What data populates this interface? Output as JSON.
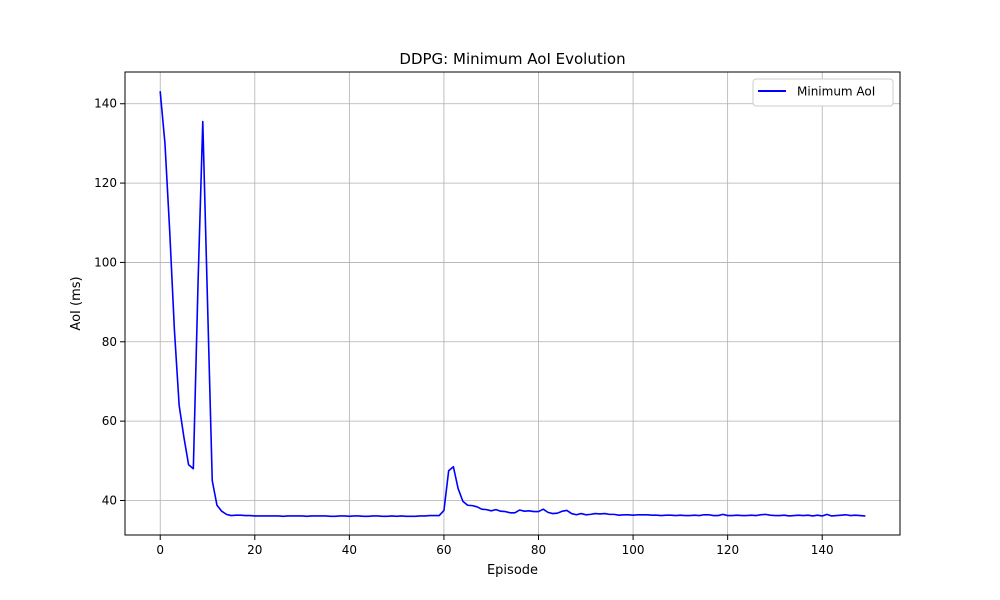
{
  "chart_data": {
    "type": "line",
    "title": "DDPG: Minimum AoI Evolution",
    "xlabel": "Episode",
    "ylabel": "AoI (ms)",
    "xlim": [
      -7.45,
      156.45
    ],
    "ylim": [
      31.3,
      148.0
    ],
    "xticks": [
      0,
      20,
      40,
      60,
      80,
      100,
      120,
      140
    ],
    "yticks": [
      40,
      60,
      80,
      100,
      120,
      140
    ],
    "grid": true,
    "legend_position": "top-right",
    "series": [
      {
        "name": "Minimum AoI",
        "color": "#0000ff",
        "x": [
          0,
          1,
          2,
          3,
          4,
          5,
          6,
          7,
          8,
          9,
          10,
          11,
          12,
          13,
          14,
          15,
          16,
          17,
          18,
          19,
          20,
          21,
          22,
          23,
          24,
          25,
          26,
          27,
          28,
          29,
          30,
          31,
          32,
          33,
          34,
          35,
          36,
          37,
          38,
          39,
          40,
          41,
          42,
          43,
          44,
          45,
          46,
          47,
          48,
          49,
          50,
          51,
          52,
          53,
          54,
          55,
          56,
          57,
          58,
          59,
          60,
          61,
          62,
          63,
          64,
          65,
          66,
          67,
          68,
          69,
          70,
          71,
          72,
          73,
          74,
          75,
          76,
          77,
          78,
          79,
          80,
          81,
          82,
          83,
          84,
          85,
          86,
          87,
          88,
          89,
          90,
          91,
          92,
          93,
          94,
          95,
          96,
          97,
          98,
          99,
          100,
          101,
          102,
          103,
          104,
          105,
          106,
          107,
          108,
          109,
          110,
          111,
          112,
          113,
          114,
          115,
          116,
          117,
          118,
          119,
          120,
          121,
          122,
          123,
          124,
          125,
          126,
          127,
          128,
          129,
          130,
          131,
          132,
          133,
          134,
          135,
          136,
          137,
          138,
          139,
          140,
          141,
          142,
          143,
          144,
          145,
          146,
          147,
          148,
          149
        ],
        "values": [
          143.0,
          130.0,
          108.0,
          83.0,
          64.0,
          56.0,
          49.0,
          48.0,
          95.0,
          135.5,
          90.0,
          45.0,
          38.8,
          37.3,
          36.5,
          36.2,
          36.3,
          36.3,
          36.2,
          36.2,
          36.1,
          36.1,
          36.1,
          36.1,
          36.1,
          36.1,
          36.0,
          36.1,
          36.1,
          36.1,
          36.1,
          36.0,
          36.1,
          36.1,
          36.1,
          36.1,
          36.0,
          36.0,
          36.1,
          36.1,
          36.0,
          36.1,
          36.1,
          36.0,
          36.0,
          36.1,
          36.1,
          36.0,
          36.0,
          36.1,
          36.0,
          36.1,
          36.0,
          36.0,
          36.0,
          36.1,
          36.1,
          36.2,
          36.2,
          36.2,
          37.5,
          47.5,
          48.5,
          43.0,
          39.8,
          38.8,
          38.7,
          38.4,
          37.8,
          37.7,
          37.4,
          37.7,
          37.3,
          37.2,
          36.9,
          36.9,
          37.6,
          37.3,
          37.4,
          37.2,
          37.2,
          37.8,
          37.0,
          36.7,
          36.8,
          37.3,
          37.5,
          36.7,
          36.4,
          36.7,
          36.4,
          36.5,
          36.7,
          36.6,
          36.7,
          36.5,
          36.5,
          36.3,
          36.4,
          36.4,
          36.3,
          36.4,
          36.4,
          36.4,
          36.3,
          36.3,
          36.2,
          36.3,
          36.3,
          36.2,
          36.3,
          36.2,
          36.2,
          36.3,
          36.2,
          36.4,
          36.4,
          36.2,
          36.2,
          36.5,
          36.2,
          36.2,
          36.3,
          36.2,
          36.2,
          36.3,
          36.2,
          36.4,
          36.5,
          36.3,
          36.2,
          36.2,
          36.3,
          36.1,
          36.2,
          36.3,
          36.2,
          36.3,
          36.1,
          36.3,
          36.1,
          36.5,
          36.1,
          36.2,
          36.3,
          36.4,
          36.2,
          36.3,
          36.2,
          36.1
        ]
      }
    ]
  }
}
